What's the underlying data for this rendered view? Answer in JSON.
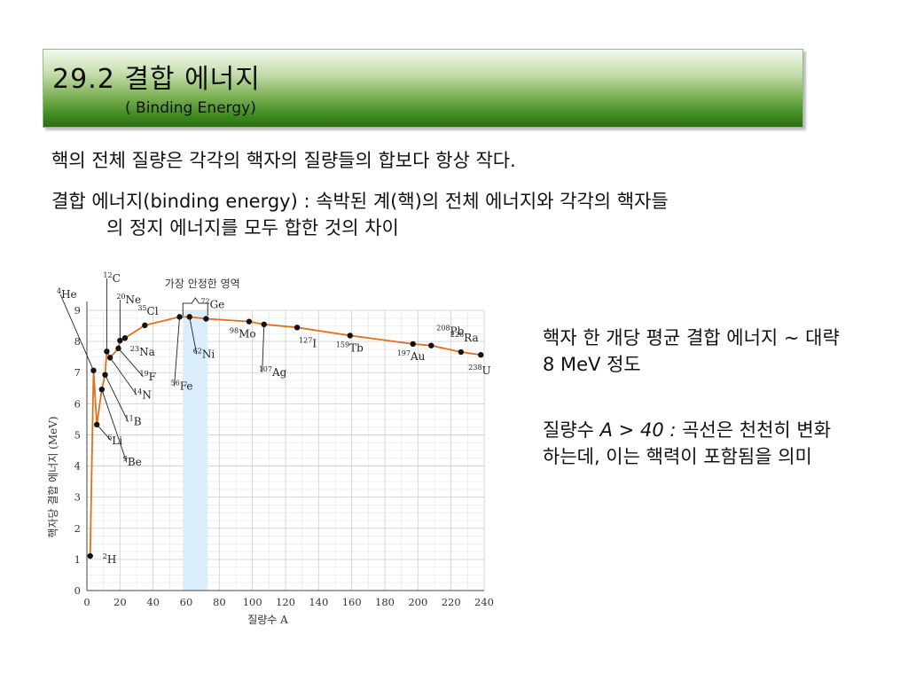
{
  "header": {
    "title": "29.2 결합 에너지",
    "subtitle": "( Binding Energy)"
  },
  "body": {
    "line1": "핵의 전체 질량은 각각의 핵자의 질량들의 합보다 항상 작다.",
    "line2a": "결합 에너지(binding energy) : 속박된 계(핵)의 전체 에너지와 각각의 핵자들",
    "line2b": "의 정지 에너지를 모두 합한 것의 차이"
  },
  "side": {
    "note1": "핵자 한 개당 평균 결합 에너지 ~ 대략 8 MeV 정도",
    "note2_pre": "질량수 ",
    "note2_var": "A > 40 :",
    "note2_post": " 곡선은 천천히 변화하는데, 이는 핵력이 포함됨을 의미"
  },
  "colors": {
    "curve": "#e07020",
    "stable_band": "#d6ecfb",
    "grid": "#cfcfcf",
    "banner_dark": "#2c6f12"
  },
  "chart_data": {
    "type": "line",
    "xlabel": "질량수 A",
    "ylabel": "핵자당 결합 에너지 (MeV)",
    "xlim": [
      0,
      240
    ],
    "ylim": [
      0,
      9
    ],
    "xticks": [
      0,
      20,
      40,
      60,
      80,
      100,
      120,
      140,
      160,
      180,
      200,
      220,
      240
    ],
    "yticks": [
      0,
      1,
      2,
      3,
      4,
      5,
      6,
      7,
      8,
      9
    ],
    "stable_region": {
      "label": "가장 안정한 영역",
      "x_range": [
        58,
        73
      ]
    },
    "points": [
      {
        "x": 2,
        "y": 1.11,
        "mass": "2",
        "sym": "H"
      },
      {
        "x": 4,
        "y": 7.07,
        "mass": "4",
        "sym": "He"
      },
      {
        "x": 6,
        "y": 5.33,
        "mass": "6",
        "sym": "Li"
      },
      {
        "x": 9,
        "y": 6.46,
        "mass": "9",
        "sym": "Be"
      },
      {
        "x": 11,
        "y": 6.93,
        "mass": "11",
        "sym": "B"
      },
      {
        "x": 12,
        "y": 7.68,
        "mass": "12",
        "sym": "C"
      },
      {
        "x": 14,
        "y": 7.48,
        "mass": "14",
        "sym": "N"
      },
      {
        "x": 19,
        "y": 7.78,
        "mass": "19",
        "sym": "F"
      },
      {
        "x": 20,
        "y": 8.03,
        "mass": "20",
        "sym": "Ne"
      },
      {
        "x": 23,
        "y": 8.11,
        "mass": "23",
        "sym": "Na"
      },
      {
        "x": 35,
        "y": 8.52,
        "mass": "35",
        "sym": "Cl"
      },
      {
        "x": 56,
        "y": 8.79,
        "mass": "56",
        "sym": "Fe"
      },
      {
        "x": 62,
        "y": 8.79,
        "mass": "62",
        "sym": "Ni"
      },
      {
        "x": 72,
        "y": 8.73,
        "mass": "72",
        "sym": "Ge"
      },
      {
        "x": 98,
        "y": 8.64,
        "mass": "98",
        "sym": "Mo"
      },
      {
        "x": 107,
        "y": 8.55,
        "mass": "107",
        "sym": "Ag"
      },
      {
        "x": 127,
        "y": 8.45,
        "mass": "127",
        "sym": "I"
      },
      {
        "x": 159,
        "y": 8.19,
        "mass": "159",
        "sym": "Tb"
      },
      {
        "x": 197,
        "y": 7.92,
        "mass": "197",
        "sym": "Au"
      },
      {
        "x": 208,
        "y": 7.87,
        "mass": "208",
        "sym": "Pb"
      },
      {
        "x": 226,
        "y": 7.66,
        "mass": "226",
        "sym": "Ra"
      },
      {
        "x": 238,
        "y": 7.57,
        "mass": "238",
        "sym": "U"
      }
    ]
  }
}
